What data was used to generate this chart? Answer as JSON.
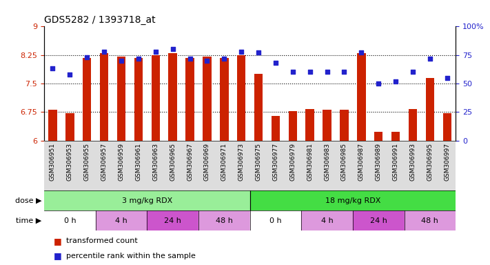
{
  "title": "GDS5282 / 1393718_at",
  "samples": [
    "GSM306951",
    "GSM306953",
    "GSM306955",
    "GSM306957",
    "GSM306959",
    "GSM306961",
    "GSM306963",
    "GSM306965",
    "GSM306967",
    "GSM306969",
    "GSM306971",
    "GSM306973",
    "GSM306975",
    "GSM306977",
    "GSM306979",
    "GSM306981",
    "GSM306983",
    "GSM306985",
    "GSM306987",
    "GSM306989",
    "GSM306991",
    "GSM306993",
    "GSM306995",
    "GSM306997"
  ],
  "bar_values": [
    6.8,
    6.72,
    8.18,
    8.3,
    8.2,
    8.18,
    8.25,
    8.3,
    8.18,
    8.2,
    8.18,
    8.25,
    7.75,
    6.65,
    6.78,
    6.82,
    6.8,
    6.8,
    8.3,
    6.22,
    6.22,
    6.82,
    7.65,
    6.72
  ],
  "percentile_values": [
    63,
    58,
    73,
    78,
    70,
    72,
    78,
    80,
    72,
    70,
    72,
    78,
    77,
    68,
    60,
    60,
    60,
    60,
    77,
    50,
    52,
    60,
    72,
    55
  ],
  "bar_baseline": 6,
  "ylim_left": [
    6,
    9
  ],
  "ylim_right": [
    0,
    100
  ],
  "yticks_left": [
    6,
    6.75,
    7.5,
    8.25,
    9
  ],
  "yticks_right": [
    0,
    25,
    50,
    75,
    100
  ],
  "ytick_labels_left": [
    "6",
    "6.75",
    "7.5",
    "8.25",
    "9"
  ],
  "ytick_labels_right": [
    "0",
    "25",
    "50",
    "75",
    "100%"
  ],
  "hlines": [
    6.75,
    7.5,
    8.25
  ],
  "bar_color": "#cc2200",
  "dot_color": "#2222cc",
  "dose_groups": [
    {
      "label": "3 mg/kg RDX",
      "start": 0,
      "end": 12,
      "color": "#99ee99"
    },
    {
      "label": "18 mg/kg RDX",
      "start": 12,
      "end": 24,
      "color": "#44dd44"
    }
  ],
  "time_groups": [
    {
      "label": "0 h",
      "start": 0,
      "end": 3,
      "color": "#ffffff"
    },
    {
      "label": "4 h",
      "start": 3,
      "end": 6,
      "color": "#dd99dd"
    },
    {
      "label": "24 h",
      "start": 6,
      "end": 9,
      "color": "#cc55cc"
    },
    {
      "label": "48 h",
      "start": 9,
      "end": 12,
      "color": "#dd99dd"
    },
    {
      "label": "0 h",
      "start": 12,
      "end": 15,
      "color": "#ffffff"
    },
    {
      "label": "4 h",
      "start": 15,
      "end": 18,
      "color": "#dd99dd"
    },
    {
      "label": "24 h",
      "start": 18,
      "end": 21,
      "color": "#cc55cc"
    },
    {
      "label": "48 h",
      "start": 21,
      "end": 24,
      "color": "#dd99dd"
    }
  ],
  "dose_label": "dose",
  "time_label": "time",
  "legend_red": "transformed count",
  "legend_blue": "percentile rank within the sample",
  "background_color": "#ffffff",
  "plot_bg_color": "#ffffff",
  "xtick_bg_color": "#dddddd"
}
